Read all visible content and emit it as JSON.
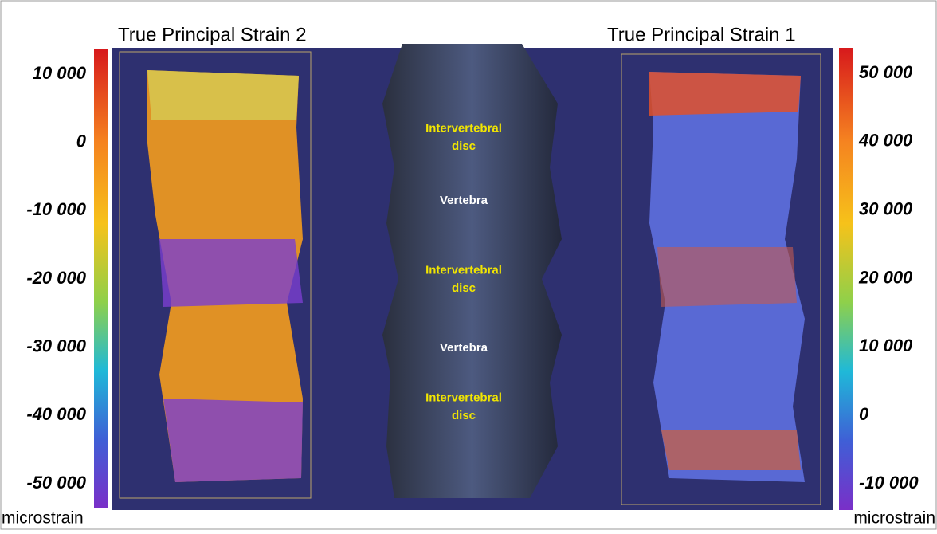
{
  "left_panel": {
    "title": "True Principal Strain 2",
    "ticks": [
      "10 000",
      "0",
      "-10 000",
      "-20 000",
      "-30 000",
      "-40 000",
      "-50 000"
    ],
    "unit": "microstrain"
  },
  "right_panel": {
    "title": "True Principal Strain 1",
    "ticks": [
      "50 000",
      "40 000",
      "30 000",
      "20 000",
      "10 000",
      "0",
      "-10 000"
    ],
    "unit": "microstrain"
  },
  "center_labels": [
    "Intervertebral disc",
    "Vertebra",
    "Intervertebral disc",
    "Vertebra",
    "Intervertebral disc"
  ]
}
